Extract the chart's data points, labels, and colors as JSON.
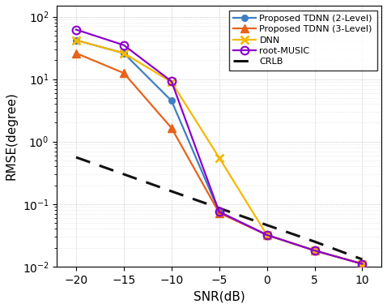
{
  "snr": [
    -20,
    -15,
    -10,
    -5,
    0,
    5,
    10
  ],
  "tdnn2": [
    42.0,
    26.0,
    4.5,
    0.075,
    0.032,
    0.018,
    0.011
  ],
  "tdnn3": [
    26.0,
    12.5,
    1.65,
    0.072,
    0.032,
    0.018,
    0.011
  ],
  "dnn": [
    42.0,
    26.0,
    9.0,
    0.55,
    0.032,
    0.018,
    0.011
  ],
  "music": [
    62.0,
    35.0,
    9.2,
    0.075,
    0.032,
    0.018,
    0.011
  ],
  "crlb_snr": [
    -20,
    -15,
    -10,
    -5,
    0,
    5,
    10
  ],
  "crlb": [
    0.56,
    0.3,
    0.16,
    0.086,
    0.046,
    0.025,
    0.013
  ],
  "tdnn2_color": "#3e7fc1",
  "tdnn3_color": "#e8621a",
  "dnn_color": "#f5b800",
  "music_color": "#8B00CC",
  "crlb_color": "#111111",
  "xlabel": "SNR(dB)",
  "ylabel": "RMSE(degree)",
  "legend_tdnn2": "Proposed TDNN (2-Level)",
  "legend_tdnn3": "Proposed TDNN (3-Level)",
  "legend_dnn": "DNN",
  "legend_music": "root-MUSIC",
  "legend_crlb": "CRLB",
  "ylim_bottom": 0.01,
  "ylim_top": 150,
  "xlim_left": -22,
  "xlim_right": 12,
  "xticks": [
    -20,
    -15,
    -10,
    -5,
    0,
    5,
    10
  ]
}
